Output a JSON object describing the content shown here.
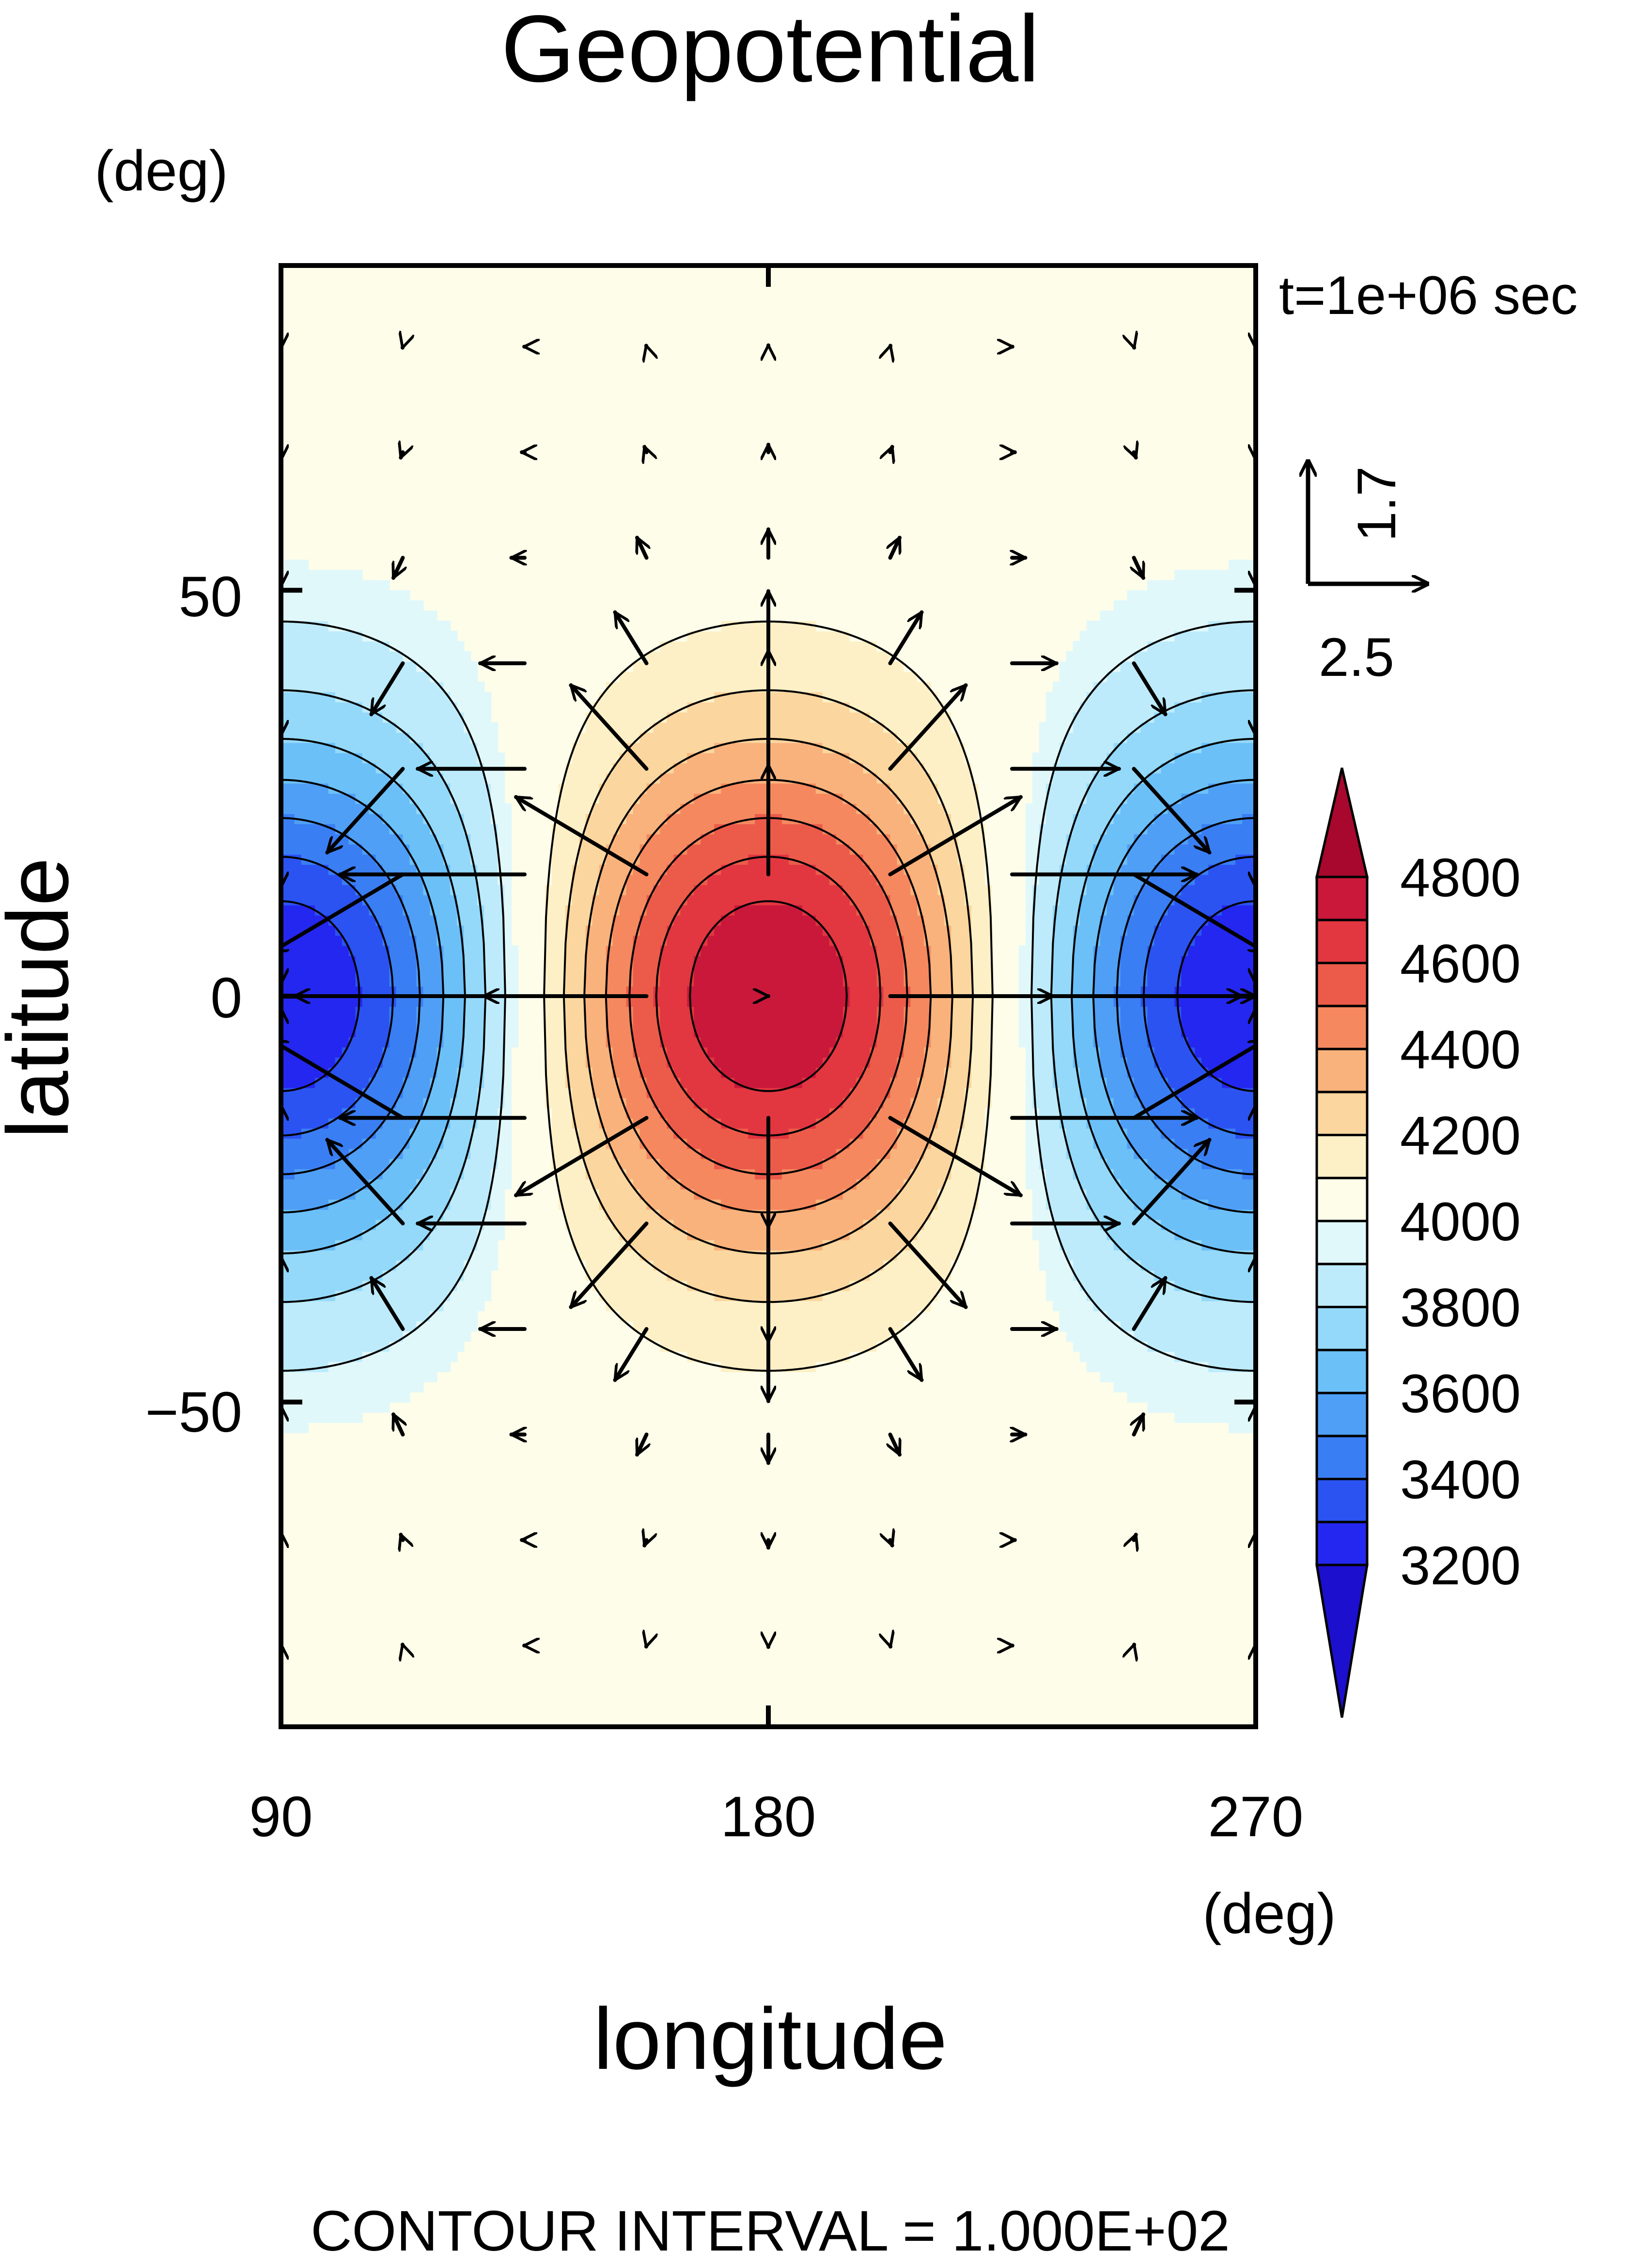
{
  "chart_data": {
    "type": "heatmap",
    "title": "Geopotential",
    "xlabel": "longitude",
    "ylabel": "latitude",
    "xunit": "(deg)",
    "yunit": "(deg)",
    "xlim": [
      90,
      270
    ],
    "ylim": [
      -90,
      90
    ],
    "xticks": [
      90,
      180,
      270
    ],
    "xtick_labels": [
      "90",
      "180",
      "270"
    ],
    "yticks": [
      50,
      0,
      -50
    ],
    "ytick_labels": [
      "50",
      "0",
      "−50"
    ],
    "time_label": "t=1e+06 sec",
    "footer": "CONTOUR INTERVAL = 1.000E+02",
    "contour_interval": 100,
    "field": {
      "mean": 4000,
      "amplitude": 800,
      "wavenumber": 2,
      "phase_lon": 180,
      "lat_scale": 32,
      "min": 3200,
      "max": 4800
    },
    "colorbar": {
      "labels": [
        "4800",
        "4600",
        "4400",
        "4200",
        "4000",
        "3800",
        "3600",
        "3400",
        "3200"
      ],
      "label_values": [
        4800,
        4600,
        4400,
        4200,
        4000,
        3800,
        3600,
        3400,
        3200
      ],
      "level_min": 3200,
      "level_max": 4800,
      "level_step": 100,
      "colors": [
        "#1d0fce",
        "#2427ef",
        "#2b53f2",
        "#3a7ef4",
        "#4f9ff6",
        "#6cc0f8",
        "#94d9fa",
        "#bdebfb",
        "#e1f8fb",
        "#fdfde9",
        "#fdf0c6",
        "#fbd69f",
        "#f9b27c",
        "#f5885f",
        "#ec5b4a",
        "#e23640",
        "#c9183a",
        "#a8082d"
      ],
      "extend": "both"
    },
    "reference_vector": {
      "u": 2.5,
      "v": 1.7,
      "u_label": "2.5",
      "v_label": "1.7"
    },
    "vectors": {
      "lons": [
        90,
        112.5,
        135,
        157.5,
        180,
        202.5,
        225,
        247.5,
        270
      ],
      "lats": [
        80,
        67,
        54,
        41,
        28,
        15,
        0,
        -15,
        -28,
        -41,
        -54,
        -67,
        -80
      ]
    }
  }
}
